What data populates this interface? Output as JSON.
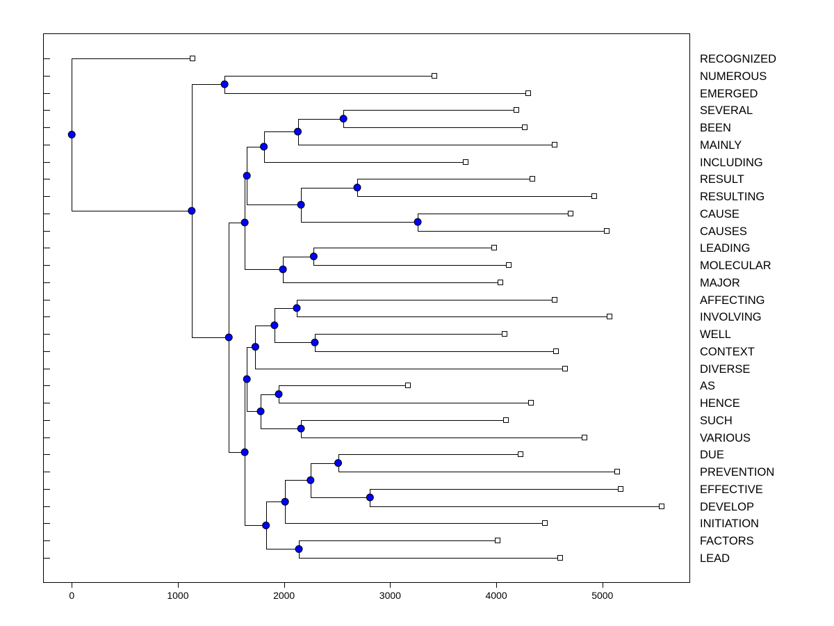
{
  "chart_data": {
    "type": "dendrogram",
    "title": "",
    "xlabel": "",
    "ylabel": "",
    "xlim": [
      -270,
      5820
    ],
    "x_ticks": [
      0,
      1000,
      2000,
      3000,
      4000,
      5000
    ],
    "leaves": [
      {
        "label": "RECOGNIZED",
        "x": 1135
      },
      {
        "label": "NUMEROUS",
        "x": 3420
      },
      {
        "label": "EMERGED",
        "x": 4300
      },
      {
        "label": "SEVERAL",
        "x": 4190
      },
      {
        "label": "BEEN",
        "x": 4270
      },
      {
        "label": "MAINLY",
        "x": 4550
      },
      {
        "label": "INCLUDING",
        "x": 3710
      },
      {
        "label": "RESULT",
        "x": 4340
      },
      {
        "label": "RESULTING",
        "x": 4920
      },
      {
        "label": "CAUSE",
        "x": 4700
      },
      {
        "label": "CAUSES",
        "x": 5040
      },
      {
        "label": "LEADING",
        "x": 3980
      },
      {
        "label": "MOLECULAR",
        "x": 4120
      },
      {
        "label": "MAJOR",
        "x": 4040
      },
      {
        "label": "AFFECTING",
        "x": 4550
      },
      {
        "label": "INVOLVING",
        "x": 5070
      },
      {
        "label": "WELL",
        "x": 4080
      },
      {
        "label": "CONTEXT",
        "x": 4560
      },
      {
        "label": "DIVERSE",
        "x": 4650
      },
      {
        "label": "AS",
        "x": 3170
      },
      {
        "label": "HENCE",
        "x": 4330
      },
      {
        "label": "SUCH",
        "x": 4090
      },
      {
        "label": "VARIOUS",
        "x": 4830
      },
      {
        "label": "DUE",
        "x": 4230
      },
      {
        "label": "PREVENTION",
        "x": 5140
      },
      {
        "label": "EFFECTIVE",
        "x": 5170
      },
      {
        "label": "DEVELOP",
        "x": 5560
      },
      {
        "label": "INITIATION",
        "x": 4460
      },
      {
        "label": "FACTORS",
        "x": 4010
      },
      {
        "label": "LEAD",
        "x": 4600
      }
    ],
    "merges": [
      {
        "a": "L1",
        "b": "L2",
        "x": 1440
      },
      {
        "a": "L3",
        "b": "L4",
        "x": 2560
      },
      {
        "a": "N1",
        "b": "L5",
        "x": 2130
      },
      {
        "a": "N2",
        "b": "L6",
        "x": 1810
      },
      {
        "a": "L7",
        "b": "L8",
        "x": 2690
      },
      {
        "a": "L9",
        "b": "L10",
        "x": 3260
      },
      {
        "a": "N4",
        "b": "N5",
        "x": 2160
      },
      {
        "a": "N3",
        "b": "N6",
        "x": 1650
      },
      {
        "a": "L11",
        "b": "L12",
        "x": 2280
      },
      {
        "a": "N8",
        "b": "L13",
        "x": 1990
      },
      {
        "a": "N7",
        "b": "N9",
        "x": 1630
      },
      {
        "a": "L14",
        "b": "L15",
        "x": 2120
      },
      {
        "a": "L16",
        "b": "L17",
        "x": 2290
      },
      {
        "a": "N11",
        "b": "N12",
        "x": 1910
      },
      {
        "a": "N13",
        "b": "L18",
        "x": 1730
      },
      {
        "a": "L19",
        "b": "L20",
        "x": 1950
      },
      {
        "a": "L21",
        "b": "L22",
        "x": 2160
      },
      {
        "a": "N15",
        "b": "N16",
        "x": 1780
      },
      {
        "a": "N14",
        "b": "N17",
        "x": 1650
      },
      {
        "a": "L23",
        "b": "L24",
        "x": 2510
      },
      {
        "a": "L25",
        "b": "L26",
        "x": 2810
      },
      {
        "a": "N19",
        "b": "N20",
        "x": 2250
      },
      {
        "a": "N21",
        "b": "L27",
        "x": 2010
      },
      {
        "a": "L28",
        "b": "L29",
        "x": 2140
      },
      {
        "a": "N22",
        "b": "N23",
        "x": 1830
      },
      {
        "a": "N18",
        "b": "N24",
        "x": 1630
      },
      {
        "a": "N10",
        "b": "N25",
        "x": 1480
      },
      {
        "a": "N0",
        "b": "N26",
        "x": 1130
      },
      {
        "a": "L0",
        "b": "N27",
        "x": 0
      }
    ],
    "colors": {
      "node_fill": "#0000ff",
      "leaf_fill": "#ffffff",
      "line": "#000000",
      "background": "#ffffff"
    }
  }
}
